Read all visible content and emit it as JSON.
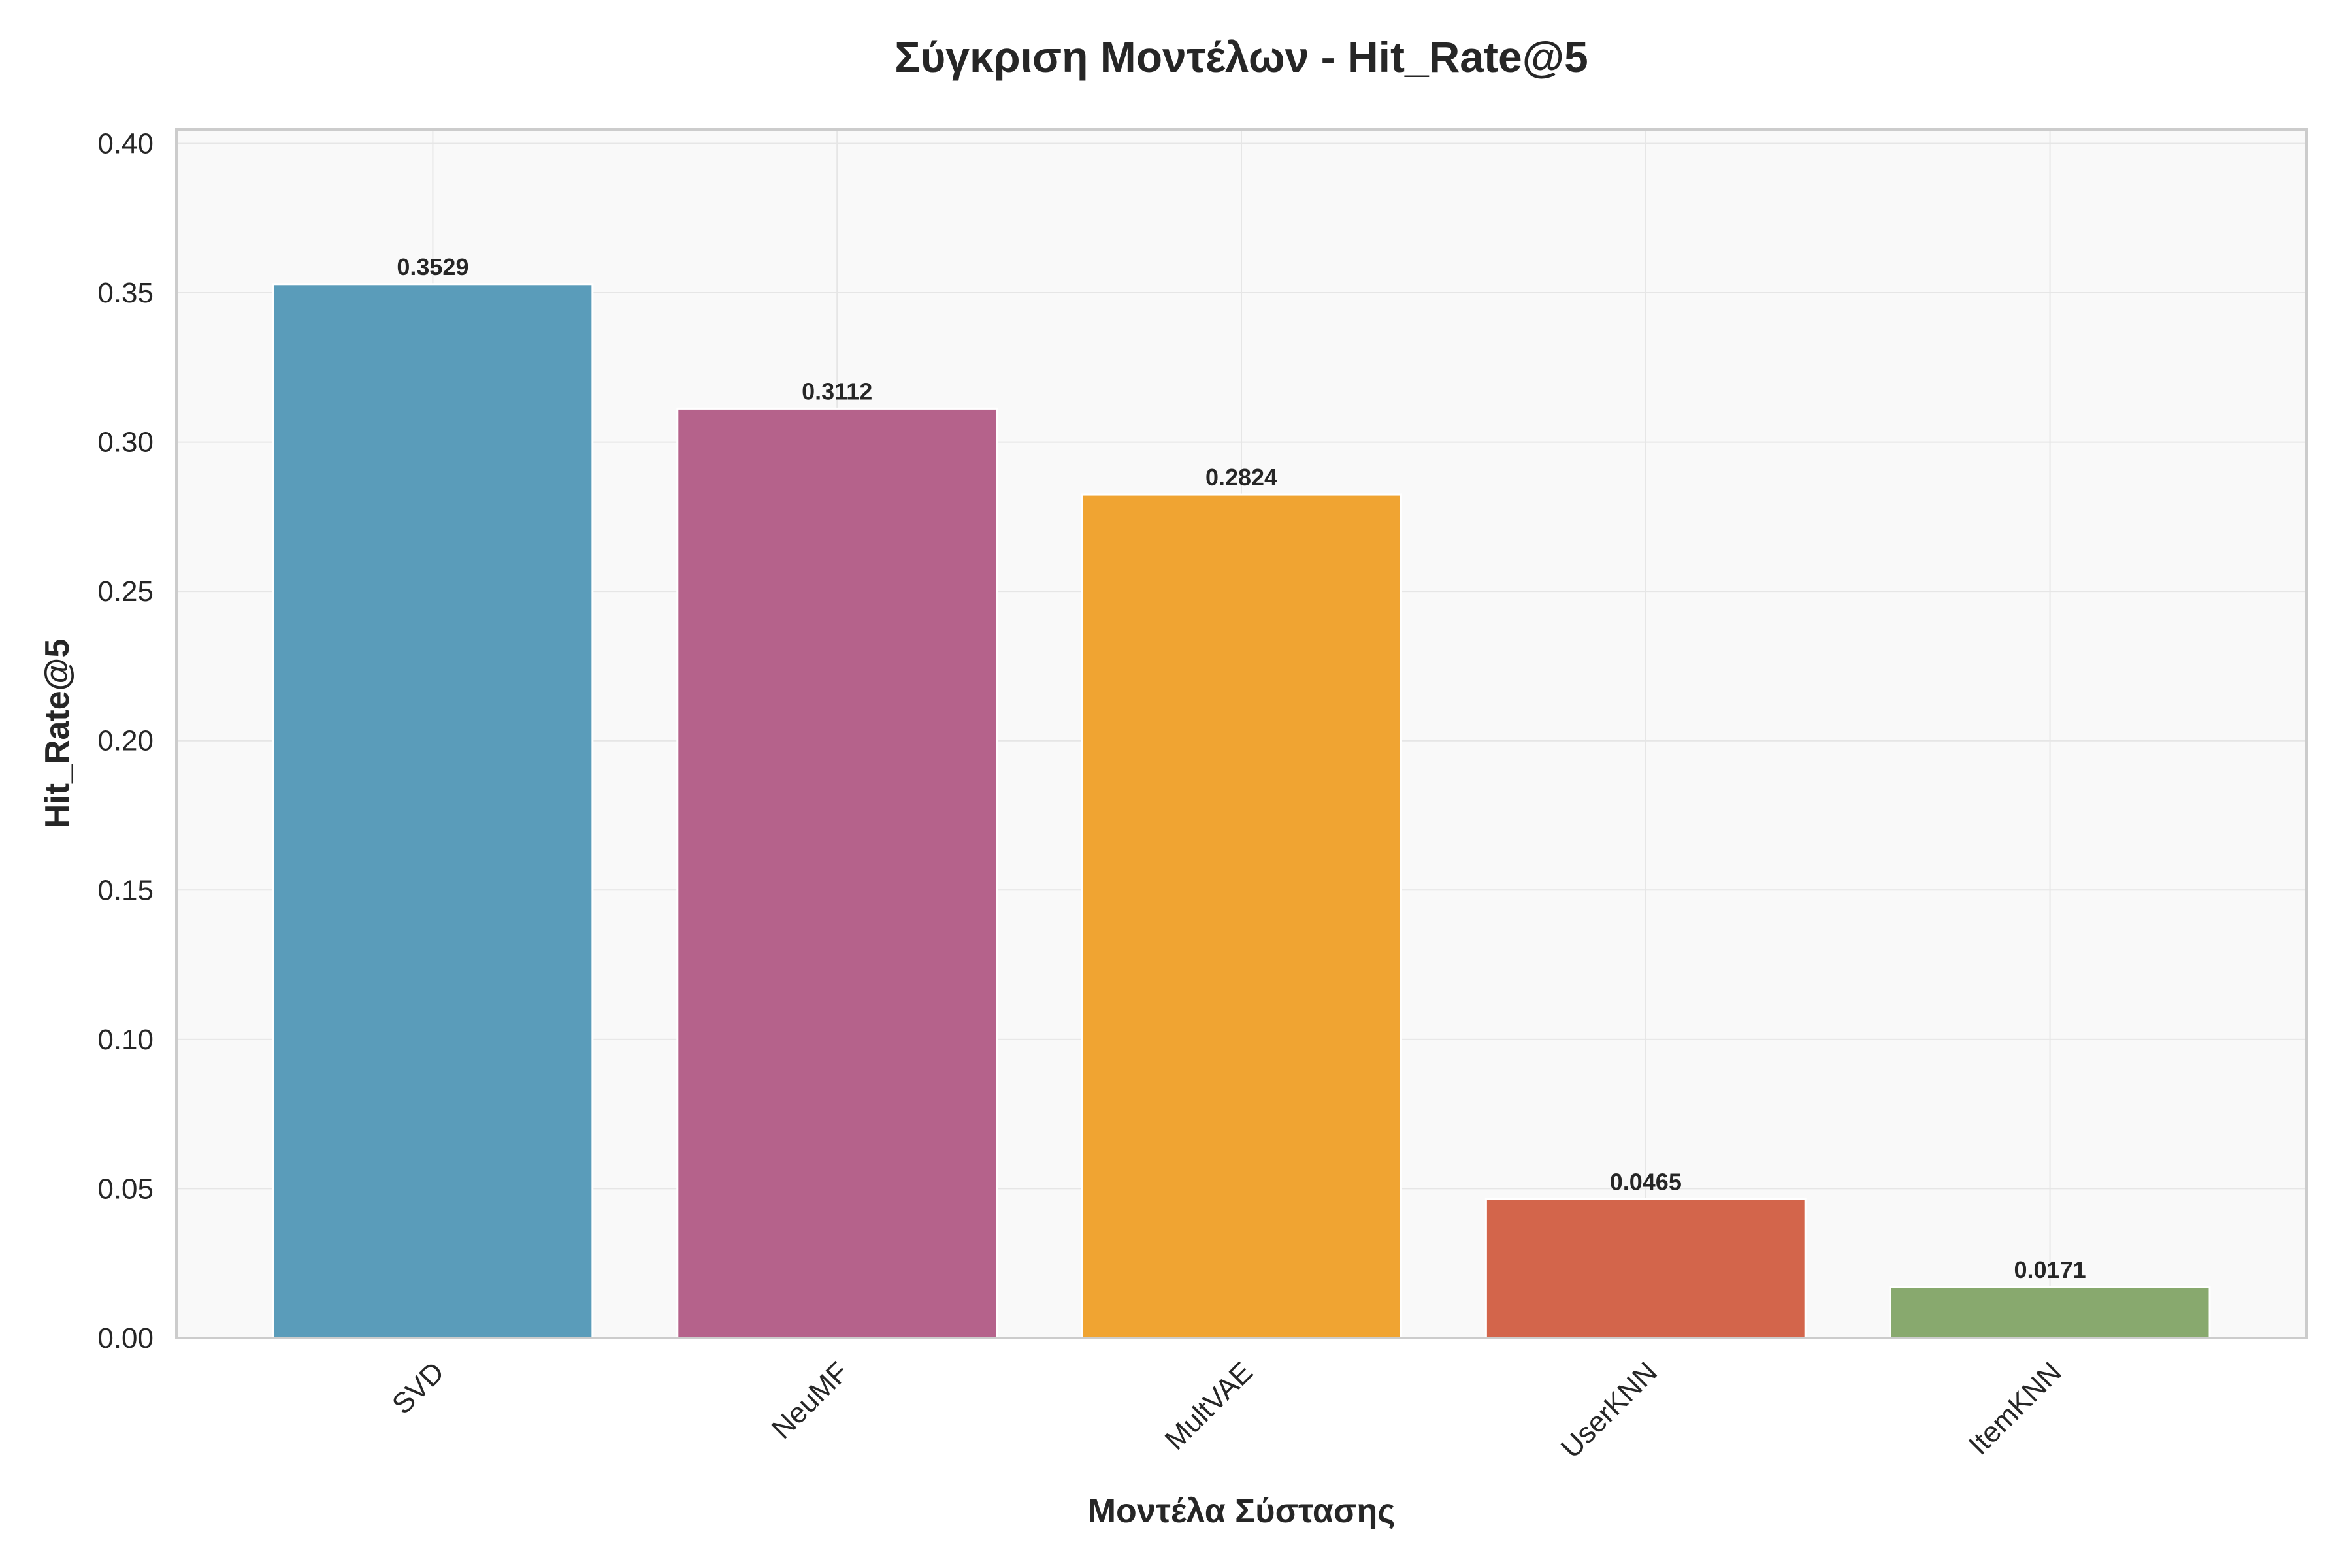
{
  "chart_data": {
    "type": "bar",
    "title": "Σύγκριση Μοντέλων - Hit_Rate@5",
    "xlabel": "Μοντέλα Σύστασης",
    "ylabel": "Hit_Rate@5",
    "ylim": [
      0,
      0.4
    ],
    "yticks": [
      "0.00",
      "0.05",
      "0.10",
      "0.15",
      "0.20",
      "0.25",
      "0.30",
      "0.35",
      "0.40"
    ],
    "categories": [
      "SVD",
      "NeuMF",
      "MultVAE",
      "UserKNN",
      "ItemKNN"
    ],
    "values": [
      0.3529,
      0.3112,
      0.2824,
      0.0465,
      0.0171
    ],
    "value_labels": [
      "0.3529",
      "0.3112",
      "0.2824",
      "0.0465",
      "0.0171"
    ],
    "colors": [
      "#5a9cba",
      "#b5628b",
      "#f0a432",
      "#d3654b",
      "#88a96e"
    ],
    "grid": true,
    "background": "#f9f9f9"
  }
}
